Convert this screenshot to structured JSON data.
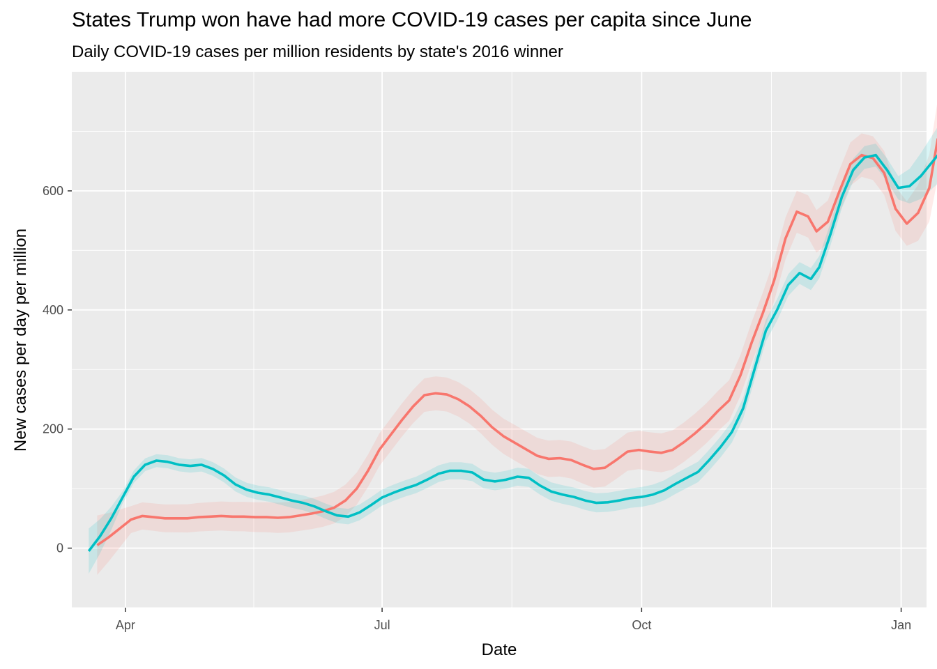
{
  "chart_data": {
    "type": "line",
    "title": "States Trump won have had more COVID-19 cases per capita since June",
    "subtitle": "Daily COVID-19 cases per million residents by state's 2016 winner",
    "xlabel": "Date",
    "ylabel": "New cases per day per million",
    "x_ticks": [
      {
        "label": "Apr",
        "date": "2020-04-01"
      },
      {
        "label": "Jul",
        "date": "2020-07-01"
      },
      {
        "label": "Oct",
        "date": "2020-10-01"
      },
      {
        "label": "Jan",
        "date": "2021-01-01"
      }
    ],
    "y_ticks": [
      0,
      200,
      400,
      600
    ],
    "xlim": [
      "2020-03-13",
      "2021-01-10"
    ],
    "ylim": [
      -100,
      800
    ],
    "grid": true,
    "legend": "none",
    "background": "#EBEBEB",
    "colors": {
      "red": "#F8766D",
      "teal": "#00BFC4"
    },
    "series": [
      {
        "color": "#F8766D",
        "points": [
          [
            "2020-03-22",
            5
          ],
          [
            "2020-03-26",
            18
          ],
          [
            "2020-03-30",
            33
          ],
          [
            "2020-04-03",
            48
          ],
          [
            "2020-04-07",
            54
          ],
          [
            "2020-04-11",
            52
          ],
          [
            "2020-04-15",
            50
          ],
          [
            "2020-04-19",
            50
          ],
          [
            "2020-04-23",
            50
          ],
          [
            "2020-04-27",
            52
          ],
          [
            "2020-05-01",
            53
          ],
          [
            "2020-05-05",
            54
          ],
          [
            "2020-05-09",
            53
          ],
          [
            "2020-05-13",
            53
          ],
          [
            "2020-05-17",
            52
          ],
          [
            "2020-05-21",
            52
          ],
          [
            "2020-05-25",
            51
          ],
          [
            "2020-05-29",
            52
          ],
          [
            "2020-06-02",
            55
          ],
          [
            "2020-06-06",
            58
          ],
          [
            "2020-06-10",
            62
          ],
          [
            "2020-06-14",
            68
          ],
          [
            "2020-06-18",
            80
          ],
          [
            "2020-06-22",
            100
          ],
          [
            "2020-06-26",
            130
          ],
          [
            "2020-06-30",
            165
          ],
          [
            "2020-07-04",
            190
          ],
          [
            "2020-07-08",
            215
          ],
          [
            "2020-07-12",
            238
          ],
          [
            "2020-07-16",
            257
          ],
          [
            "2020-07-20",
            260
          ],
          [
            "2020-07-24",
            258
          ],
          [
            "2020-07-28",
            250
          ],
          [
            "2020-08-01",
            238
          ],
          [
            "2020-08-05",
            222
          ],
          [
            "2020-08-09",
            203
          ],
          [
            "2020-08-13",
            188
          ],
          [
            "2020-08-17",
            177
          ],
          [
            "2020-08-21",
            166
          ],
          [
            "2020-08-25",
            155
          ],
          [
            "2020-08-29",
            150
          ],
          [
            "2020-09-02",
            151
          ],
          [
            "2020-09-06",
            148
          ],
          [
            "2020-09-10",
            140
          ],
          [
            "2020-09-14",
            133
          ],
          [
            "2020-09-18",
            135
          ],
          [
            "2020-09-22",
            148
          ],
          [
            "2020-09-26",
            162
          ],
          [
            "2020-09-30",
            165
          ],
          [
            "2020-10-04",
            162
          ],
          [
            "2020-10-08",
            160
          ],
          [
            "2020-10-12",
            165
          ],
          [
            "2020-10-16",
            178
          ],
          [
            "2020-10-20",
            193
          ],
          [
            "2020-10-24",
            210
          ],
          [
            "2020-10-28",
            230
          ],
          [
            "2020-11-01",
            248
          ],
          [
            "2020-11-05",
            290
          ],
          [
            "2020-11-09",
            345
          ],
          [
            "2020-11-13",
            395
          ],
          [
            "2020-11-17",
            450
          ],
          [
            "2020-11-21",
            520
          ],
          [
            "2020-11-25",
            565
          ],
          [
            "2020-11-29",
            557
          ],
          [
            "2020-12-02",
            532
          ],
          [
            "2020-12-06",
            548
          ],
          [
            "2020-12-10",
            598
          ],
          [
            "2020-12-14",
            645
          ],
          [
            "2020-12-18",
            660
          ],
          [
            "2020-12-22",
            655
          ],
          [
            "2020-12-26",
            630
          ],
          [
            "2020-12-30",
            570
          ],
          [
            "2021-01-03",
            545
          ],
          [
            "2021-01-07",
            563
          ],
          [
            "2021-01-11",
            605
          ],
          [
            "2021-01-14",
            688
          ]
        ]
      },
      {
        "color": "#00BFC4",
        "points": [
          [
            "2020-03-19",
            -5
          ],
          [
            "2020-03-23",
            20
          ],
          [
            "2020-03-27",
            50
          ],
          [
            "2020-03-31",
            85
          ],
          [
            "2020-04-04",
            120
          ],
          [
            "2020-04-08",
            140
          ],
          [
            "2020-04-12",
            147
          ],
          [
            "2020-04-16",
            145
          ],
          [
            "2020-04-20",
            140
          ],
          [
            "2020-04-24",
            138
          ],
          [
            "2020-04-28",
            140
          ],
          [
            "2020-05-02",
            133
          ],
          [
            "2020-05-06",
            122
          ],
          [
            "2020-05-10",
            107
          ],
          [
            "2020-05-14",
            98
          ],
          [
            "2020-05-18",
            93
          ],
          [
            "2020-05-22",
            90
          ],
          [
            "2020-05-26",
            85
          ],
          [
            "2020-05-30",
            80
          ],
          [
            "2020-06-03",
            76
          ],
          [
            "2020-06-07",
            70
          ],
          [
            "2020-06-11",
            62
          ],
          [
            "2020-06-15",
            55
          ],
          [
            "2020-06-19",
            53
          ],
          [
            "2020-06-23",
            60
          ],
          [
            "2020-06-27",
            72
          ],
          [
            "2020-07-01",
            85
          ],
          [
            "2020-07-05",
            93
          ],
          [
            "2020-07-09",
            100
          ],
          [
            "2020-07-13",
            106
          ],
          [
            "2020-07-17",
            115
          ],
          [
            "2020-07-21",
            125
          ],
          [
            "2020-07-25",
            130
          ],
          [
            "2020-07-29",
            130
          ],
          [
            "2020-08-02",
            127
          ],
          [
            "2020-08-06",
            115
          ],
          [
            "2020-08-10",
            112
          ],
          [
            "2020-08-14",
            115
          ],
          [
            "2020-08-18",
            120
          ],
          [
            "2020-08-22",
            118
          ],
          [
            "2020-08-26",
            105
          ],
          [
            "2020-08-30",
            95
          ],
          [
            "2020-09-03",
            90
          ],
          [
            "2020-09-07",
            86
          ],
          [
            "2020-09-11",
            80
          ],
          [
            "2020-09-15",
            76
          ],
          [
            "2020-09-19",
            77
          ],
          [
            "2020-09-23",
            80
          ],
          [
            "2020-09-27",
            84
          ],
          [
            "2020-10-01",
            86
          ],
          [
            "2020-10-05",
            90
          ],
          [
            "2020-10-09",
            97
          ],
          [
            "2020-10-13",
            108
          ],
          [
            "2020-10-17",
            118
          ],
          [
            "2020-10-21",
            128
          ],
          [
            "2020-10-25",
            148
          ],
          [
            "2020-10-29",
            170
          ],
          [
            "2020-11-02",
            195
          ],
          [
            "2020-11-06",
            235
          ],
          [
            "2020-11-10",
            300
          ],
          [
            "2020-11-14",
            365
          ],
          [
            "2020-11-18",
            400
          ],
          [
            "2020-11-22",
            442
          ],
          [
            "2020-11-26",
            462
          ],
          [
            "2020-11-30",
            452
          ],
          [
            "2020-12-03",
            472
          ],
          [
            "2020-12-07",
            528
          ],
          [
            "2020-12-11",
            590
          ],
          [
            "2020-12-15",
            635
          ],
          [
            "2020-12-19",
            656
          ],
          [
            "2020-12-23",
            660
          ],
          [
            "2020-12-27",
            635
          ],
          [
            "2020-12-31",
            605
          ],
          [
            "2021-01-04",
            608
          ],
          [
            "2021-01-08",
            625
          ],
          [
            "2021-01-14",
            660
          ]
        ]
      }
    ]
  }
}
